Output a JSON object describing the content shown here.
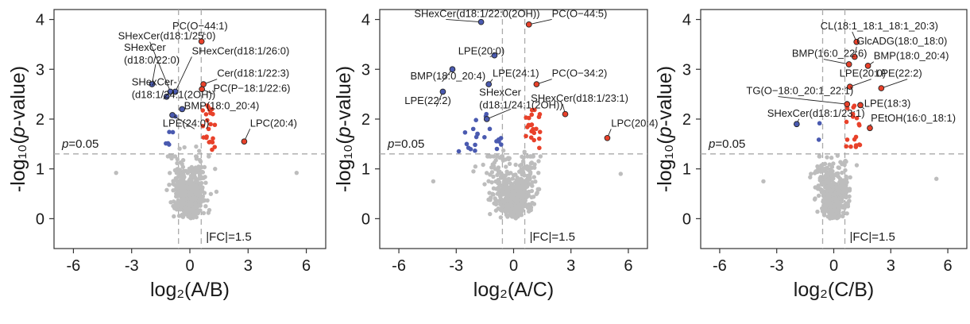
{
  "chart_data": [
    {
      "type": "scatter",
      "xlabel": "log₂(A/B)",
      "ylabel": "-log₁₀(p-value)",
      "xlim": [
        -7,
        7
      ],
      "ylim": [
        -0.6,
        4.2
      ],
      "xticks": [
        -6,
        -3,
        0,
        3,
        6
      ],
      "yticks": [
        0,
        1,
        2,
        3,
        4
      ],
      "fc_label": "|FC|=1.5",
      "p_label": "p=0.05",
      "fc_cut": 0.585,
      "p_cut": 1.301,
      "colors": {
        "up": "#e8412a",
        "down": "#4a5ab0",
        "ns": "#bdbdbd",
        "guide": "#aaaaaa"
      },
      "labeled_points": [
        {
          "label": "PC(O−44:1)",
          "x": 0.6,
          "y": 3.56,
          "color": "#e8412a",
          "lx": -0.9,
          "ly": 3.8
        },
        {
          "label": "SHexCer(d18:1/25:0)",
          "x": -1.0,
          "y": 2.55,
          "color": "#4a5ab0",
          "lx": -3.7,
          "ly": 3.6
        },
        {
          "label": "SHexCer(d18:1/26:0)",
          "x": -0.75,
          "y": 2.55,
          "color": "#4a5ab0",
          "lx": 0.1,
          "ly": 3.3
        },
        {
          "label": "SHexCer\n(d18:0/22:0)",
          "x": -1.95,
          "y": 2.7,
          "color": "#4a5ab0",
          "lx": -3.4,
          "ly": 3.15
        },
        {
          "label": "Cer(d18:1/22:3)",
          "x": 0.7,
          "y": 2.7,
          "color": "#e8412a",
          "lx": 1.4,
          "ly": 2.85
        },
        {
          "label": "PC(P−18:1/22:6)",
          "x": 0.62,
          "y": 2.6,
          "color": "#e8412a",
          "lx": 1.2,
          "ly": 2.55
        },
        {
          "label": "SHexCer-\n(d18:1/24:1(2OH))",
          "x": -1.2,
          "y": 2.45,
          "color": "#4a5ab0",
          "lx": -3.0,
          "ly": 2.45
        },
        {
          "label": "BMP(18:0_20:4)",
          "x": -0.4,
          "y": 2.2,
          "color": "#4a5ab0",
          "lx": -0.3,
          "ly": 2.2
        },
        {
          "label": "LPE(24:0)",
          "x": -0.9,
          "y": 2.08,
          "color": "#4a5ab0",
          "lx": -1.4,
          "ly": 1.85
        },
        {
          "label": "LPC(20:4)",
          "x": 2.8,
          "y": 1.55,
          "color": "#e8412a",
          "lx": 3.1,
          "ly": 1.85
        }
      ],
      "seed": 11,
      "n_ns": 520,
      "n_up": 22,
      "n_down": 6,
      "ns_spread": 0.42,
      "ns_outliers": [
        [
          -3.8,
          0.92
        ],
        [
          5.5,
          0.92
        ],
        [
          1.3,
          1.0
        ]
      ]
    },
    {
      "type": "scatter",
      "xlabel": "log₂(A/C)",
      "ylabel": "-log₁₀(p-value)",
      "xlim": [
        -7,
        7
      ],
      "ylim": [
        -0.6,
        4.2
      ],
      "xticks": [
        -6,
        -3,
        0,
        3,
        6
      ],
      "yticks": [
        0,
        1,
        2,
        3,
        4
      ],
      "fc_label": "|FC|=1.5",
      "p_label": "p=0.05",
      "fc_cut": 0.585,
      "p_cut": 1.301,
      "colors": {
        "up": "#e8412a",
        "down": "#4a5ab0",
        "ns": "#bdbdbd",
        "guide": "#aaaaaa"
      },
      "labeled_points": [
        {
          "label": "SHexCer(d18:1/22:0(2OH))",
          "x": -1.7,
          "y": 3.95,
          "color": "#4a5ab0",
          "lx": -5.2,
          "ly": 4.05
        },
        {
          "label": "PC(O−44:5)",
          "x": 0.8,
          "y": 3.9,
          "color": "#e8412a",
          "lx": 2.0,
          "ly": 4.05
        },
        {
          "label": "LPE(20:0)",
          "x": -1.0,
          "y": 3.28,
          "color": "#4a5ab0",
          "lx": -2.9,
          "ly": 3.3
        },
        {
          "label": "BMP(18:0_20:4)",
          "x": -3.2,
          "y": 3.0,
          "color": "#4a5ab0",
          "lx": -5.4,
          "ly": 2.8
        },
        {
          "label": "LPE(24:1)",
          "x": -1.3,
          "y": 2.7,
          "color": "#4a5ab0",
          "lx": -1.1,
          "ly": 2.85
        },
        {
          "label": "PC(O−34:2)",
          "x": 1.2,
          "y": 2.7,
          "color": "#e8412a",
          "lx": 2.0,
          "ly": 2.85
        },
        {
          "label": "LPE(22:2)",
          "x": -3.7,
          "y": 2.55,
          "color": "#4a5ab0",
          "lx": -5.7,
          "ly": 2.3
        },
        {
          "label": "SHexCer\n(d18:1/24:1(2OH))",
          "x": -1.4,
          "y": 2.0,
          "color": "#4a5ab0",
          "lx": -1.8,
          "ly": 2.25
        },
        {
          "label": "SHexCer(d18:1/23:1)",
          "x": 2.7,
          "y": 2.1,
          "color": "#e8412a",
          "lx": 0.9,
          "ly": 2.35
        },
        {
          "label": "LPC(20:4)",
          "x": 4.9,
          "y": 1.62,
          "color": "#e8412a",
          "lx": 5.1,
          "ly": 1.85
        }
      ],
      "seed": 23,
      "n_ns": 520,
      "n_up": 22,
      "n_down": 22,
      "ns_spread": 0.55,
      "ns_outliers": [
        [
          -4.2,
          0.75
        ],
        [
          5.6,
          0.9
        ],
        [
          -2.1,
          0.95
        ]
      ]
    },
    {
      "type": "scatter",
      "xlabel": "log₂(C/B)",
      "ylabel": "-log₁₀(p-value)",
      "xlim": [
        -7,
        7
      ],
      "ylim": [
        -0.6,
        4.2
      ],
      "xticks": [
        -6,
        -3,
        0,
        3,
        6
      ],
      "yticks": [
        0,
        1,
        2,
        3,
        4
      ],
      "fc_label": "|FC|=1.5",
      "p_label": "p=0.05",
      "fc_cut": 0.585,
      "p_cut": 1.301,
      "colors": {
        "up": "#e8412a",
        "down": "#4a5ab0",
        "ns": "#bdbdbd",
        "guide": "#aaaaaa"
      },
      "labeled_points": [
        {
          "label": "CL(18:1_18:1_18:1_20:3)",
          "x": 1.2,
          "y": 3.55,
          "color": "#e8412a",
          "lx": -0.7,
          "ly": 3.8
        },
        {
          "label": "GlcADG(18:0_18:0)",
          "x": 1.1,
          "y": 3.25,
          "color": "#e8412a",
          "lx": 1.2,
          "ly": 3.5
        },
        {
          "label": "BMP(16:0_22:6)",
          "x": 0.8,
          "y": 3.1,
          "color": "#e8412a",
          "lx": -2.2,
          "ly": 3.25
        },
        {
          "label": "BMP(18:0_20:4)",
          "x": 1.8,
          "y": 3.07,
          "color": "#e8412a",
          "lx": 2.1,
          "ly": 3.2
        },
        {
          "label": "LPE(20:0)",
          "x": 0.85,
          "y": 2.65,
          "color": "#e8412a",
          "lx": 0.3,
          "ly": 2.85
        },
        {
          "label": "LPE(22:2)",
          "x": 2.5,
          "y": 2.62,
          "color": "#e8412a",
          "lx": 2.2,
          "ly": 2.85
        },
        {
          "label": "TG(O−18:0_20:1_22:1)",
          "x": 0.7,
          "y": 2.3,
          "color": "#e8412a",
          "lx": -4.6,
          "ly": 2.5
        },
        {
          "label": "LPE(18:3)",
          "x": 1.4,
          "y": 2.28,
          "color": "#e8412a",
          "lx": 1.6,
          "ly": 2.25
        },
        {
          "label": "SHexCer(d18:1/23:1)",
          "x": -1.95,
          "y": 1.9,
          "color": "#4a5ab0",
          "lx": -3.5,
          "ly": 2.05
        },
        {
          "label": "PEtOH(16:0_18:1)",
          "x": 1.9,
          "y": 1.82,
          "color": "#e8412a",
          "lx": 1.95,
          "ly": 1.95
        }
      ],
      "seed": 37,
      "n_ns": 480,
      "n_up": 18,
      "n_down": 2,
      "ns_spread": 0.4,
      "ns_outliers": [
        [
          -3.7,
          0.75
        ],
        [
          5.4,
          0.8
        ],
        [
          -1.2,
          0.9
        ]
      ]
    }
  ]
}
